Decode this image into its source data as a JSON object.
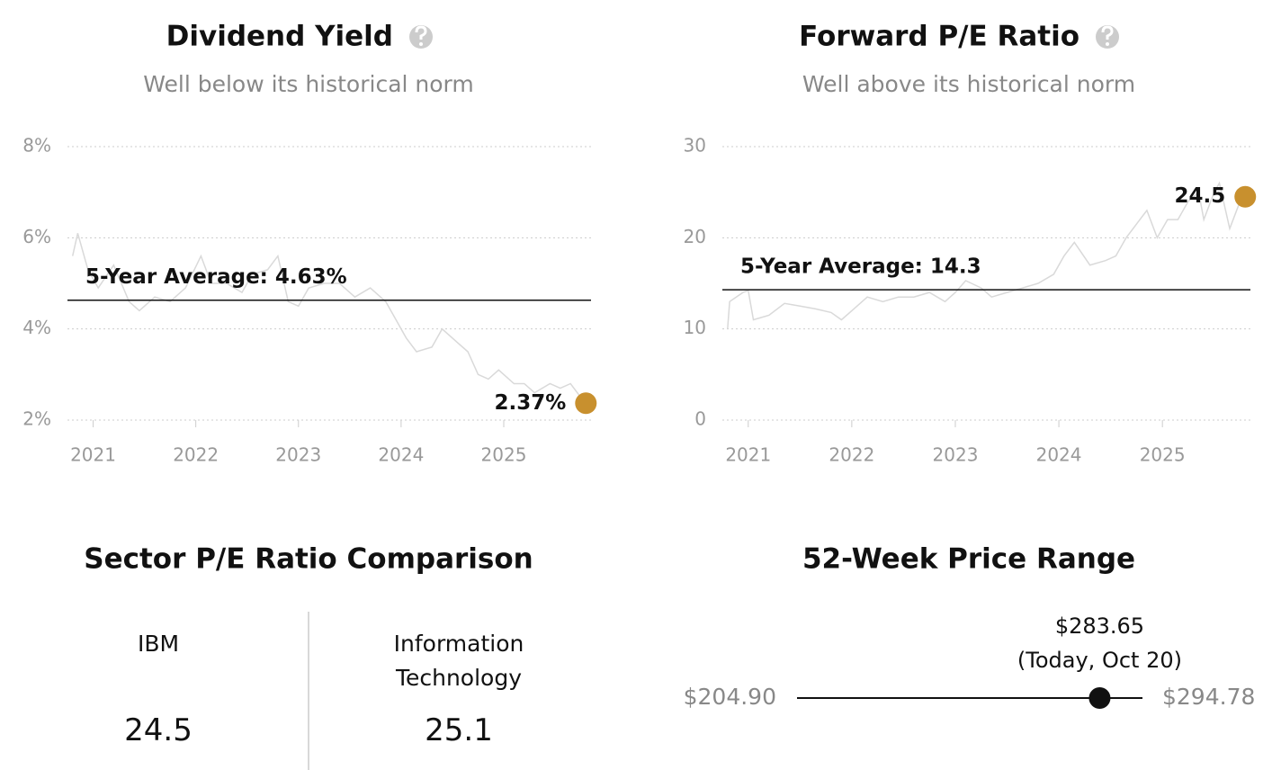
{
  "chart_data": [
    {
      "type": "line",
      "title": "Dividend Yield",
      "subtitle": "Well below its historical norm",
      "info_icon": true,
      "color": "#d9d9d9",
      "x": [
        2020.8,
        2020.85,
        2020.95,
        2021.05,
        2021.2,
        2021.35,
        2021.45,
        2021.6,
        2021.75,
        2021.9,
        2022.05,
        2022.15,
        2022.3,
        2022.45,
        2022.55,
        2022.7,
        2022.8,
        2022.9,
        2023.0,
        2023.1,
        2023.25,
        2023.4,
        2023.55,
        2023.7,
        2023.85,
        2023.95,
        2024.05,
        2024.15,
        2024.3,
        2024.4,
        2024.55,
        2024.65,
        2024.75,
        2024.85,
        2024.95,
        2025.1,
        2025.2,
        2025.3,
        2025.45,
        2025.55,
        2025.65,
        2025.75,
        2025.8
      ],
      "values": [
        5.6,
        6.1,
        5.3,
        4.9,
        5.4,
        4.6,
        4.4,
        4.7,
        4.6,
        4.9,
        5.6,
        5.0,
        5.0,
        4.8,
        5.2,
        5.3,
        5.6,
        4.6,
        4.5,
        4.9,
        5.0,
        5.0,
        4.7,
        4.9,
        4.6,
        4.2,
        3.8,
        3.5,
        3.6,
        4.0,
        3.7,
        3.5,
        3.0,
        2.9,
        3.1,
        2.8,
        2.8,
        2.6,
        2.8,
        2.7,
        2.8,
        2.5,
        2.37
      ],
      "xlim": [
        2020.75,
        2025.85
      ],
      "xticks": [
        2021,
        2022,
        2023,
        2024,
        2025
      ],
      "ylim": [
        2,
        8
      ],
      "yticks": [
        {
          "value": 2,
          "label": "2%"
        },
        {
          "value": 4,
          "label": "4%"
        },
        {
          "value": 6,
          "label": "6%"
        },
        {
          "value": 8,
          "label": "8%"
        }
      ],
      "grid": true,
      "average": {
        "value": 4.63,
        "label": "5-Year Average: 4.63%"
      },
      "current": {
        "x": 2025.8,
        "value": 2.37,
        "label": "2.37%",
        "color": "#c8902e"
      }
    },
    {
      "type": "line",
      "title": "Forward P/E Ratio",
      "subtitle": "Well above its historical norm",
      "info_icon": true,
      "color": "#d9d9d9",
      "x": [
        2020.8,
        2020.82,
        2020.95,
        2021.0,
        2021.05,
        2021.2,
        2021.35,
        2021.5,
        2021.65,
        2021.8,
        2021.9,
        2022.0,
        2022.15,
        2022.3,
        2022.45,
        2022.6,
        2022.75,
        2022.9,
        2023.0,
        2023.1,
        2023.25,
        2023.35,
        2023.5,
        2023.65,
        2023.8,
        2023.95,
        2024.05,
        2024.15,
        2024.3,
        2024.45,
        2024.55,
        2024.65,
        2024.75,
        2024.85,
        2024.95,
        2025.05,
        2025.15,
        2025.25,
        2025.35,
        2025.4,
        2025.5,
        2025.55,
        2025.65,
        2025.75,
        2025.8
      ],
      "values": [
        10,
        13,
        14,
        14.2,
        11,
        11.5,
        12.8,
        12.5,
        12.2,
        11.8,
        11,
        12,
        13.5,
        13,
        13.5,
        13.5,
        14,
        13,
        14,
        15.3,
        14.5,
        13.5,
        14,
        14.5,
        15,
        16,
        18,
        19.5,
        17,
        17.5,
        18,
        20,
        21.5,
        23,
        20,
        22,
        22,
        24,
        25,
        22,
        25,
        26,
        21,
        24,
        24.5
      ],
      "xlim": [
        2020.75,
        2025.85
      ],
      "xticks": [
        2021,
        2022,
        2023,
        2024,
        2025
      ],
      "ylim": [
        0,
        30
      ],
      "yticks": [
        0,
        10,
        20,
        30
      ],
      "grid": true,
      "average": {
        "value": 14.3,
        "label": "5-Year Average: 14.3"
      },
      "current": {
        "x": 2025.8,
        "value": 24.5,
        "label": "24.5",
        "color": "#c8902e"
      }
    }
  ],
  "sector_comparison": {
    "title": "Sector P/E Ratio Comparison",
    "items": [
      {
        "label": "IBM",
        "value": 24.5
      },
      {
        "label": "Information Technology",
        "value": 25.1
      }
    ]
  },
  "price_range": {
    "title": "52-Week Price Range",
    "low": {
      "value": 204.9,
      "label": "$204.90"
    },
    "high": {
      "value": 294.78,
      "label": "$294.78"
    },
    "current": {
      "value": 283.65,
      "label": "$283.65",
      "note": "(Today, Oct 20)"
    }
  }
}
